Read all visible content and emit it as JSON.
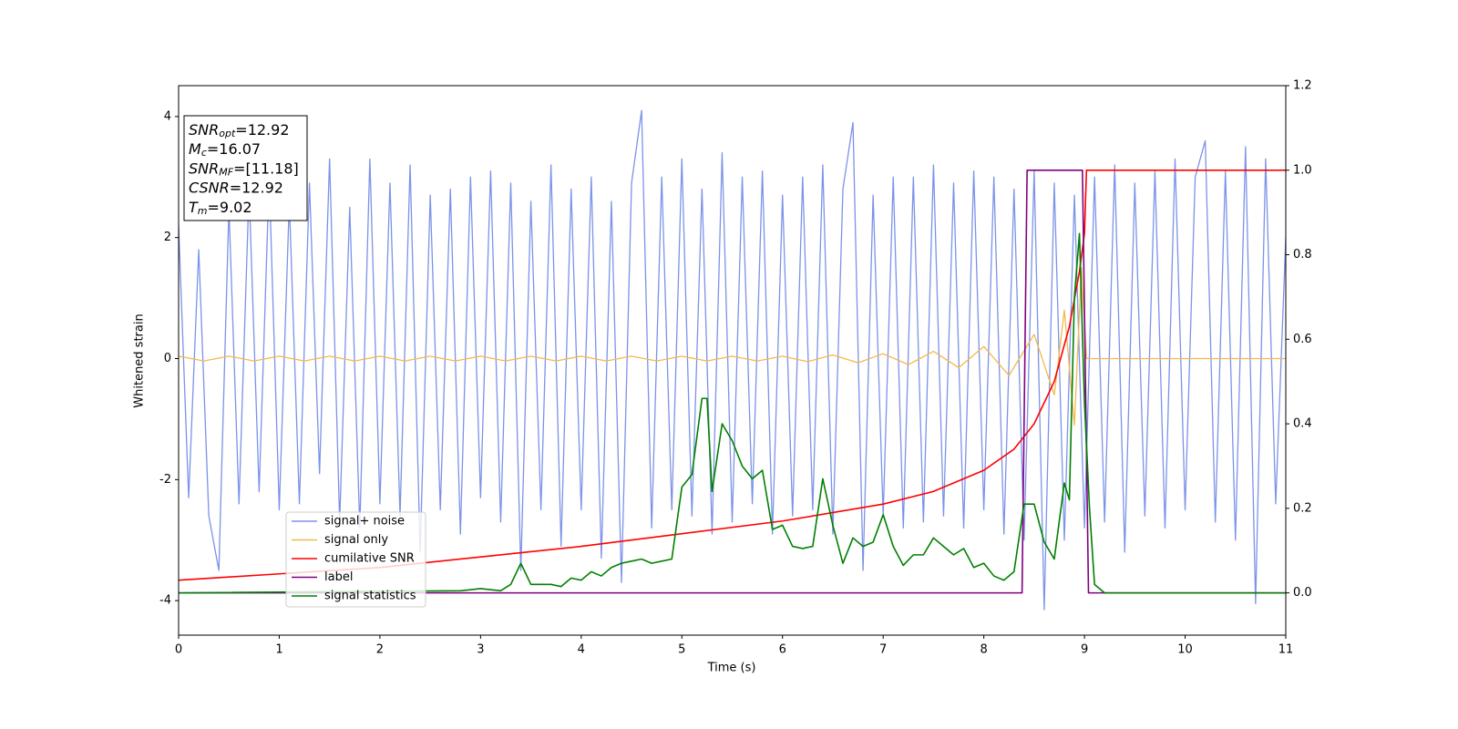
{
  "chart_data": {
    "type": "line",
    "xlabel": "Time (s)",
    "ylabel": "Whitened strain",
    "xlim": [
      0,
      11
    ],
    "xticks": [
      0,
      1,
      2,
      3,
      4,
      5,
      6,
      7,
      8,
      9,
      10,
      11
    ],
    "ylim": [
      -4.57,
      4.51
    ],
    "yticks": [
      -4,
      -2,
      0,
      2,
      4
    ],
    "y2lim": [
      -0.1,
      1.2
    ],
    "y2ticks": [
      {
        "value": 0,
        "label": "0.0"
      },
      {
        "value": 0.2,
        "label": "0.2"
      },
      {
        "value": 0.4,
        "label": "0.4"
      },
      {
        "value": 0.6,
        "label": "0.6"
      },
      {
        "value": 0.8,
        "label": "0.8"
      },
      {
        "value": 1.0,
        "label": "1.0"
      },
      {
        "value": 1.2,
        "label": "1.2"
      }
    ],
    "legend": "lower left",
    "annotations": [
      {
        "symbol": "SNR",
        "sub": "opt",
        "text": "=12.92"
      },
      {
        "symbol": "M",
        "sub": "c",
        "text": "=16.07"
      },
      {
        "symbol": "SNR",
        "sub": "MF",
        "text": "=[11.18]"
      },
      {
        "symbol": "CSNR",
        "text": "=12.92"
      },
      {
        "symbol": "T",
        "sub": "m",
        "text": "=9.02"
      }
    ],
    "series": [
      {
        "name": "signal+ noise",
        "color": "#7b93e8",
        "axis": "y",
        "x": [
          0,
          0.1,
          0.2,
          0.3,
          0.4,
          0.5,
          0.6,
          0.7,
          0.8,
          0.9,
          1,
          1.1,
          1.2,
          1.3,
          1.4,
          1.5,
          1.6,
          1.7,
          1.8,
          1.9,
          2,
          2.1,
          2.2,
          2.3,
          2.4,
          2.5,
          2.6,
          2.7,
          2.8,
          2.9,
          3,
          3.1,
          3.2,
          3.3,
          3.4,
          3.5,
          3.6,
          3.7,
          3.8,
          3.9,
          4,
          4.1,
          4.2,
          4.3,
          4.4,
          4.5,
          4.6,
          4.7,
          4.8,
          4.9,
          5,
          5.1,
          5.2,
          5.3,
          5.4,
          5.5,
          5.6,
          5.7,
          5.8,
          5.9,
          6,
          6.1,
          6.2,
          6.3,
          6.4,
          6.5,
          6.6,
          6.7,
          6.8,
          6.9,
          7,
          7.1,
          7.2,
          7.3,
          7.4,
          7.5,
          7.6,
          7.7,
          7.8,
          7.9,
          8,
          8.1,
          8.2,
          8.3,
          8.4,
          8.5,
          8.6,
          8.7,
          8.8,
          8.9,
          9,
          9.1,
          9.2,
          9.3,
          9.4,
          9.5,
          9.6,
          9.7,
          9.8,
          9.9,
          10,
          10.1,
          10.2,
          10.3,
          10.4,
          10.5,
          10.6,
          10.7,
          10.8,
          10.9,
          11
        ],
        "values": [
          2.2,
          -2.3,
          1.8,
          -2.6,
          -3.5,
          2.5,
          -2.4,
          2.8,
          -2.2,
          3.0,
          -2.5,
          2.6,
          -2.4,
          2.9,
          -1.9,
          3.3,
          -2.7,
          2.5,
          -2.8,
          3.3,
          -2.4,
          2.9,
          -2.6,
          3.2,
          -3.2,
          2.7,
          -2.5,
          2.8,
          -2.9,
          3.0,
          -2.3,
          3.1,
          -2.7,
          2.9,
          -3.5,
          2.6,
          -2.5,
          3.2,
          -3.1,
          2.8,
          -2.5,
          3.0,
          -3.3,
          2.6,
          -3.7,
          2.9,
          4.1,
          -2.8,
          3.0,
          -2.5,
          3.3,
          -2.6,
          2.8,
          -2.9,
          3.4,
          -2.7,
          3.0,
          -2.4,
          3.1,
          -2.9,
          2.7,
          -2.6,
          3.0,
          -2.5,
          3.2,
          -2.9,
          2.8,
          3.9,
          -3.5,
          2.7,
          -2.6,
          3.0,
          -2.8,
          3.0,
          -2.7,
          3.2,
          -2.6,
          2.9,
          -2.8,
          3.1,
          -2.5,
          3.0,
          -2.9,
          2.8,
          -3.0,
          3.1,
          -4.15,
          2.9,
          -3.0,
          2.7,
          -2.8,
          3.0,
          -2.7,
          3.2,
          -3.2,
          2.9,
          -2.6,
          3.1,
          -2.8,
          3.3,
          -2.5,
          3.0,
          3.6,
          -2.7,
          3.1,
          -3.0,
          3.5,
          -4.05,
          3.3,
          -2.4,
          2.0
        ]
      },
      {
        "name": "signal only",
        "color": "#f5b74e",
        "axis": "y",
        "x": [
          0,
          0.25,
          0.5,
          0.75,
          1,
          1.25,
          1.5,
          1.75,
          2,
          2.25,
          2.5,
          2.75,
          3,
          3.25,
          3.5,
          3.75,
          4,
          4.25,
          4.5,
          4.75,
          5,
          5.25,
          5.5,
          5.75,
          6,
          6.25,
          6.5,
          6.75,
          7,
          7.25,
          7.5,
          7.75,
          8,
          8.25,
          8.5,
          8.7,
          8.8,
          8.9,
          8.97,
          9.02,
          11
        ],
        "values": [
          0.04,
          -0.04,
          0.04,
          -0.04,
          0.04,
          -0.04,
          0.04,
          -0.04,
          0.04,
          -0.04,
          0.04,
          -0.04,
          0.04,
          -0.04,
          0.04,
          -0.04,
          0.04,
          -0.04,
          0.04,
          -0.04,
          0.04,
          -0.04,
          0.04,
          -0.04,
          0.04,
          -0.05,
          0.06,
          -0.07,
          0.08,
          -0.1,
          0.12,
          -0.15,
          0.2,
          -0.28,
          0.4,
          -0.6,
          0.8,
          -1.1,
          1.5,
          0,
          0
        ]
      },
      {
        "name": "cumilative SNR",
        "color": "#ff0000",
        "axis": "y2",
        "x": [
          0,
          1,
          2,
          3,
          4,
          5,
          6,
          7,
          7.5,
          8,
          8.3,
          8.5,
          8.7,
          8.85,
          8.95,
          9.0,
          9.02,
          11
        ],
        "values": [
          0.03,
          0.045,
          0.06,
          0.085,
          0.11,
          0.14,
          0.17,
          0.21,
          0.24,
          0.29,
          0.34,
          0.4,
          0.5,
          0.63,
          0.76,
          0.85,
          1.0,
          1.0
        ]
      },
      {
        "name": "label",
        "color": "#800080",
        "axis": "y2",
        "x": [
          0,
          8.38,
          8.43,
          8.98,
          9.04,
          11
        ],
        "values": [
          0,
          0,
          1,
          1,
          0,
          0
        ]
      },
      {
        "name": "signal statistics",
        "color": "#008000",
        "axis": "y2",
        "x": [
          0,
          2.8,
          3.0,
          3.2,
          3.3,
          3.4,
          3.5,
          3.7,
          3.8,
          3.9,
          4.0,
          4.1,
          4.2,
          4.3,
          4.4,
          4.5,
          4.6,
          4.7,
          4.8,
          4.9,
          5.0,
          5.1,
          5.2,
          5.25,
          5.3,
          5.4,
          5.5,
          5.6,
          5.7,
          5.8,
          5.9,
          6.0,
          6.1,
          6.2,
          6.3,
          6.4,
          6.5,
          6.6,
          6.7,
          6.8,
          6.9,
          7.0,
          7.1,
          7.2,
          7.3,
          7.4,
          7.5,
          7.6,
          7.7,
          7.8,
          7.9,
          8.0,
          8.1,
          8.2,
          8.3,
          8.4,
          8.5,
          8.6,
          8.7,
          8.8,
          8.85,
          8.9,
          8.95,
          9.0,
          9.05,
          9.1,
          9.2,
          11
        ],
        "values": [
          0,
          0.005,
          0.01,
          0.005,
          0.02,
          0.07,
          0.02,
          0.02,
          0.015,
          0.035,
          0.03,
          0.05,
          0.04,
          0.06,
          0.07,
          0.075,
          0.08,
          0.07,
          0.075,
          0.08,
          0.25,
          0.28,
          0.46,
          0.46,
          0.24,
          0.4,
          0.36,
          0.3,
          0.27,
          0.29,
          0.15,
          0.16,
          0.11,
          0.105,
          0.11,
          0.27,
          0.16,
          0.07,
          0.13,
          0.11,
          0.12,
          0.185,
          0.11,
          0.065,
          0.09,
          0.09,
          0.13,
          0.11,
          0.09,
          0.105,
          0.06,
          0.07,
          0.04,
          0.03,
          0.05,
          0.21,
          0.21,
          0.12,
          0.08,
          0.26,
          0.22,
          0.7,
          0.85,
          0.45,
          0.2,
          0.02,
          0,
          0
        ]
      }
    ]
  }
}
